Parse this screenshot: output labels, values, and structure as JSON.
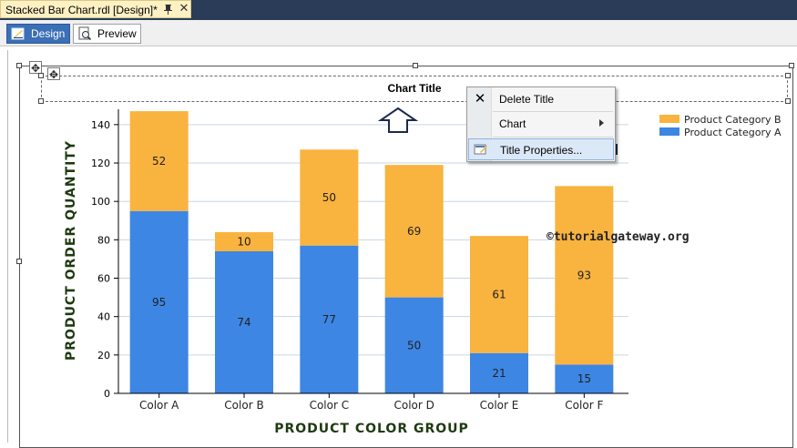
{
  "document_tab": {
    "title": "Stacked Bar Chart.rdl [Design]*"
  },
  "view_tabs": {
    "design_label": "Design",
    "preview_label": "Preview"
  },
  "chart_title": "Chart Title",
  "context_menu": {
    "delete_title": "Delete Title",
    "chart": "Chart",
    "title_properties": "Title Properties..."
  },
  "watermark": "©tutorialgateway.org",
  "colors": {
    "series_a": "#3d86e3",
    "series_b": "#f9b33f",
    "tab_active": "#3b6fb6",
    "menu_hover": "#dbe8f7"
  },
  "chart_data": {
    "type": "bar",
    "stacked": true,
    "categories": [
      "Color A",
      "Color B",
      "Color C",
      "Color D",
      "Color E",
      "Color F"
    ],
    "series": [
      {
        "name": "Product Category A",
        "values": [
          95,
          74,
          77,
          50,
          21,
          15
        ],
        "color": "#3d86e3"
      },
      {
        "name": "Product Category B",
        "values": [
          52,
          10,
          50,
          69,
          61,
          93
        ],
        "color": "#f9b33f"
      }
    ],
    "legend_order": [
      "Product Category B",
      "Product Category A"
    ],
    "xlabel": "PRODUCT COLOR GROUP",
    "ylabel": "PRODUCT ORDER QUANTITY",
    "yticks": [
      0,
      20,
      40,
      60,
      80,
      100,
      120,
      140
    ],
    "ylim": [
      0,
      148
    ],
    "grid": true,
    "legend": "top-right"
  }
}
